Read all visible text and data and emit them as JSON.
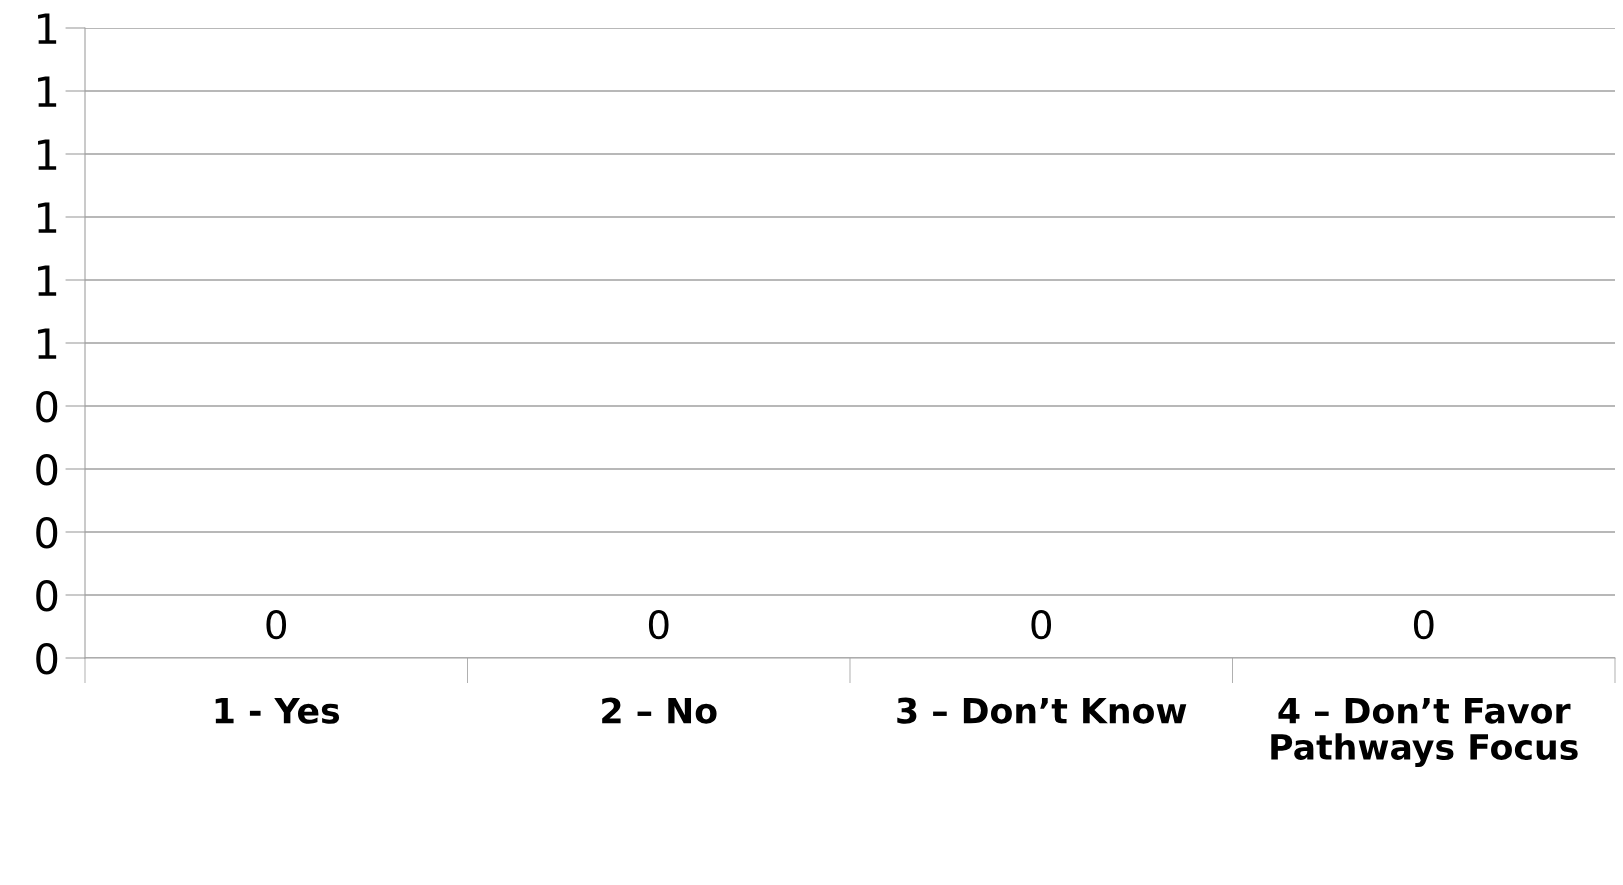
{
  "chart_data": {
    "type": "bar",
    "categories": [
      "1 - Yes",
      "2 – No",
      "3 – Don’t Know",
      "4 – Don’t Favor Pathways Focus"
    ],
    "values": [
      0,
      0,
      0,
      0
    ],
    "data_labels": true,
    "ylim": [
      0,
      1
    ],
    "yticks": [
      {
        "value": 0,
        "label": "0"
      },
      {
        "value": 0.1,
        "label": "0"
      },
      {
        "value": 0.2,
        "label": "0"
      },
      {
        "value": 0.3,
        "label": "0"
      },
      {
        "value": 0.4,
        "label": "0"
      },
      {
        "value": 0.5,
        "label": "1"
      },
      {
        "value": 0.6,
        "label": "1"
      },
      {
        "value": 0.7,
        "label": "1"
      },
      {
        "value": 0.8,
        "label": "1"
      },
      {
        "value": 0.9,
        "label": "1"
      },
      {
        "value": 1,
        "label": "1"
      }
    ],
    "grid": "y"
  }
}
